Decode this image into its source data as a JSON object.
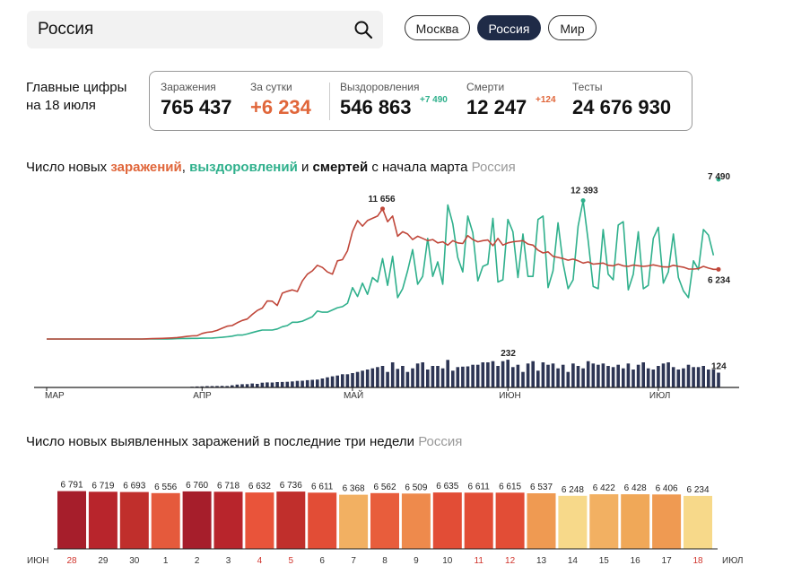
{
  "search": {
    "value": "Россия"
  },
  "region_tabs": [
    {
      "label": "Москва",
      "active": false
    },
    {
      "label": "Россия",
      "active": true
    },
    {
      "label": "Мир",
      "active": false
    }
  ],
  "main_figures": {
    "label_line1": "Главные цифры",
    "label_line2": "на 18 июля",
    "stats": [
      {
        "label": "Заражения",
        "value": "765 437",
        "color": "#111111"
      },
      {
        "label": "За сутки",
        "value": "+6 234",
        "color": "#e0663a"
      },
      {
        "label": "Выздоровления",
        "value": "546 863",
        "delta": "+7 490",
        "delta_color": "#2fb08c",
        "color": "#111111"
      },
      {
        "label": "Смерти",
        "value": "12 247",
        "delta": "+124",
        "delta_color": "#e0663a",
        "color": "#111111"
      },
      {
        "label": "Тесты",
        "value": "24 676 930",
        "color": "#111111"
      }
    ]
  },
  "chart1": {
    "title_parts": [
      "Число новых ",
      "заражений",
      ", ",
      "выздоровлений",
      " и ",
      "смертей",
      " с начала марта "
    ],
    "region": "Россия",
    "month_labels": [
      "МАР",
      "АПР",
      "МАЙ",
      "ИЮН",
      "ИЮЛ"
    ],
    "callouts": {
      "cases_peak": "11 656",
      "recov_peak": "12 393",
      "recov_last": "7 490",
      "cases_last": "6 234",
      "deaths_peak": "232",
      "deaths_last": "124"
    }
  },
  "chart2": {
    "title": "Число новых выявленных заражений в последние три недели ",
    "region": "Россия",
    "left_month": "ИЮН",
    "right_month": "ИЮЛ"
  },
  "chart_data": [
    {
      "type": "line",
      "title": "Число новых заражений, выздоровлений и смертей с начала марта",
      "x_start": "2020-03-01",
      "x_end": "2020-07-18",
      "series": [
        {
          "name": "заражений",
          "color": "#c0473a",
          "values": [
            0,
            0,
            0,
            0,
            0,
            0,
            0,
            0,
            0,
            0,
            0,
            0,
            0,
            0,
            0,
            0,
            0,
            0,
            0,
            0,
            20,
            30,
            50,
            60,
            70,
            100,
            130,
            180,
            230,
            280,
            300,
            500,
            600,
            650,
            770,
            960,
            1150,
            1200,
            1450,
            1660,
            1790,
            2200,
            2550,
            2770,
            3400,
            3390,
            3000,
            4100,
            4270,
            4400,
            4250,
            5200,
            5800,
            6100,
            6600,
            6400,
            6000,
            5800,
            7000,
            7100,
            7900,
            9620,
            10600,
            10100,
            10600,
            10800,
            11000,
            11650,
            10500,
            11000,
            9200,
            9600,
            9400,
            8900,
            9200,
            9000,
            8800,
            8900,
            8600,
            8700,
            8400,
            8800,
            8600,
            8550,
            9250,
            8900,
            8700,
            8800,
            8860,
            8350,
            9000,
            8400,
            8600,
            8700,
            8750,
            8800,
            8500,
            8400,
            7950,
            7700,
            7800,
            7400,
            7300,
            7200,
            7050,
            7150,
            7000,
            6800,
            6900,
            6700,
            6750,
            6800,
            6600,
            6550,
            6700,
            6550,
            6500,
            6620,
            6560,
            6500,
            6550,
            6640,
            6540,
            6450,
            6440,
            6600,
            6500,
            6430,
            6270,
            6260,
            6300,
            6500,
            6350,
            6234,
            6234
          ]
        },
        {
          "name": "выздоровлений",
          "color": "#2fb08c",
          "values": [
            0,
            0,
            0,
            0,
            0,
            0,
            0,
            0,
            0,
            0,
            0,
            0,
            0,
            0,
            0,
            0,
            0,
            0,
            0,
            0,
            0,
            0,
            0,
            10,
            10,
            20,
            30,
            40,
            50,
            60,
            60,
            70,
            80,
            90,
            120,
            150,
            200,
            260,
            350,
            350,
            450,
            580,
            700,
            800,
            800,
            800,
            900,
            1100,
            1200,
            1500,
            1500,
            1600,
            1800,
            2000,
            2500,
            2400,
            2400,
            2600,
            2800,
            2900,
            3200,
            4600,
            3800,
            5000,
            4000,
            5500,
            5100,
            7200,
            4800,
            7400,
            3700,
            4500,
            6100,
            8000,
            4900,
            5600,
            9000,
            5600,
            6900,
            4900,
            12000,
            10300,
            7300,
            6000,
            11000,
            9500,
            5200,
            6500,
            6700,
            10800,
            5100,
            5300,
            10700,
            9600,
            5500,
            9400,
            5600,
            5600,
            10700,
            11000,
            4600,
            6100,
            10400,
            6800,
            4500,
            5300,
            10100,
            12393,
            8800,
            4700,
            4500,
            9800,
            5800,
            5300,
            10200,
            10500,
            4400,
            5800,
            9600,
            4500,
            4800,
            9000,
            10000,
            5000,
            6000,
            9400,
            5500,
            4300,
            3700,
            7000,
            6200,
            9800,
            9300,
            7490
          ]
        },
        {
          "name": "смертей",
          "color": "#2d3554",
          "values": [
            0,
            0,
            0,
            0,
            0,
            0,
            0,
            0,
            0,
            0,
            0,
            0,
            0,
            0,
            0,
            0,
            0,
            0,
            0,
            0,
            0,
            0,
            1,
            1,
            1,
            2,
            3,
            4,
            4,
            6,
            8,
            9,
            11,
            11,
            12,
            13,
            12,
            18,
            24,
            27,
            28,
            33,
            30,
            40,
            42,
            41,
            45,
            46,
            47,
            50,
            55,
            56,
            61,
            64,
            66,
            75,
            85,
            93,
            100,
            110,
            110,
            120,
            130,
            140,
            150,
            160,
            170,
            180,
            130,
            210,
            155,
            180,
            130,
            160,
            200,
            210,
            150,
            180,
            180,
            160,
            230,
            140,
            170,
            174,
            176,
            190,
            190,
            210,
            210,
            220,
            180,
            220,
            232,
            170,
            190,
            130,
            200,
            220,
            140,
            210,
            190,
            200,
            160,
            190,
            130,
            200,
            180,
            160,
            220,
            200,
            190,
            200,
            180,
            170,
            190,
            160,
            200,
            150,
            190,
            210,
            160,
            150,
            180,
            200,
            210,
            170,
            150,
            160,
            190,
            170,
            170,
            180,
            150,
            150,
            124
          ]
        }
      ],
      "annotations": [
        {
          "series": "заражений",
          "label": "11 656",
          "value": 11656
        },
        {
          "series": "выздоровлений",
          "label": "12 393",
          "value": 12393
        },
        {
          "series": "выздоровлений",
          "label": "7 490",
          "value": 7490
        },
        {
          "series": "заражений",
          "label": "6 234",
          "value": 6234
        },
        {
          "series": "смертей",
          "label": "232",
          "value": 232
        },
        {
          "series": "смертей",
          "label": "124",
          "value": 124
        }
      ]
    },
    {
      "type": "bar",
      "title": "Число новых выявленных заражений в последние три недели",
      "categories": [
        "28",
        "29",
        "30",
        "1",
        "2",
        "3",
        "4",
        "5",
        "6",
        "7",
        "8",
        "9",
        "10",
        "11",
        "12",
        "13",
        "14",
        "15",
        "16",
        "17",
        "18"
      ],
      "values": [
        6791,
        6719,
        6693,
        6556,
        6760,
        6718,
        6632,
        6736,
        6611,
        6368,
        6562,
        6509,
        6635,
        6611,
        6615,
        6537,
        6248,
        6422,
        6428,
        6406,
        6234
      ],
      "value_labels": [
        "6 791",
        "6 719",
        "6 693",
        "6 556",
        "6 760",
        "6 718",
        "6 632",
        "6 736",
        "6 611",
        "6 368",
        "6 562",
        "6 509",
        "6 635",
        "6 611",
        "6 615",
        "6 537",
        "6 248",
        "6 422",
        "6 428",
        "6 406",
        "6 234"
      ],
      "weekend": [
        true,
        false,
        false,
        false,
        false,
        false,
        true,
        true,
        false,
        false,
        false,
        false,
        false,
        true,
        true,
        false,
        false,
        false,
        false,
        false,
        true
      ],
      "colors": [
        "#a61e2b",
        "#b8252c",
        "#c02f2c",
        "#e55a3c",
        "#a61e2b",
        "#b8252c",
        "#e9543a",
        "#c02f2c",
        "#e24d36",
        "#f2b062",
        "#e85d3c",
        "#ee8a4c",
        "#e24d36",
        "#e24d36",
        "#e24d36",
        "#ef9a52",
        "#f7d98a",
        "#f2b062",
        "#f0a858",
        "#ef9a52",
        "#f7d98a"
      ],
      "weekend_color": "#d0342c"
    }
  ]
}
